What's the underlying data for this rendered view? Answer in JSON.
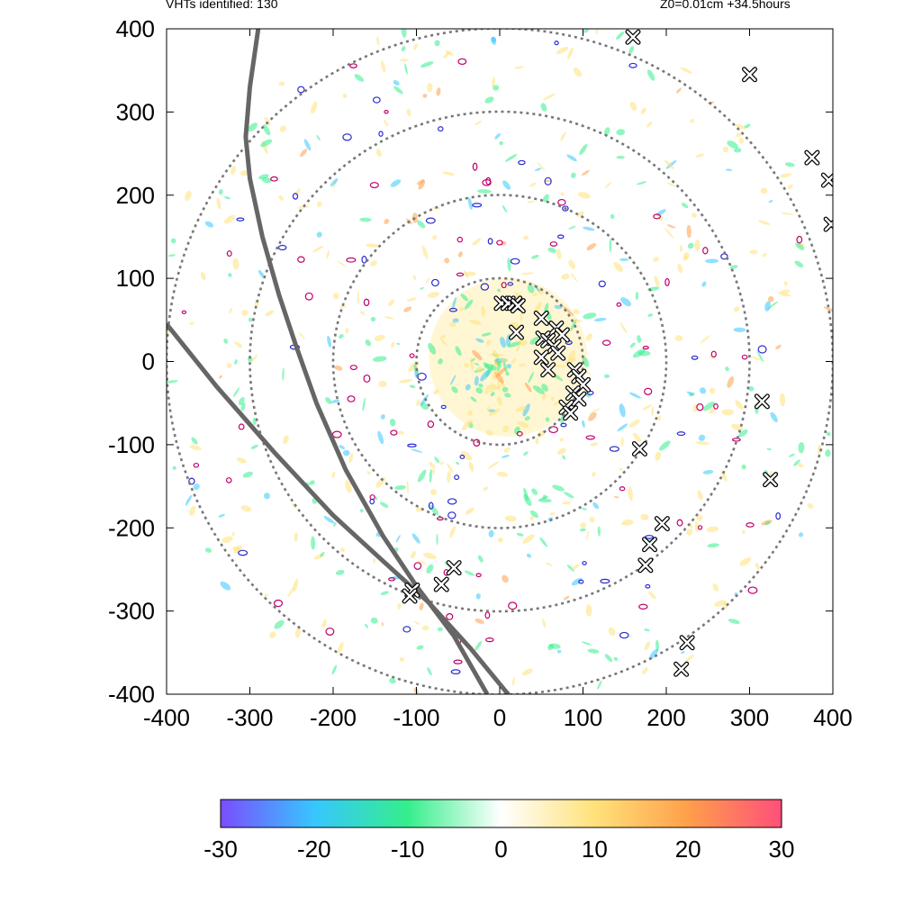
{
  "header": {
    "left_text": "VHTs identified: 130",
    "right_text": "Z0=0.01cm  +34.5hours"
  },
  "chart_data": {
    "type": "scatter",
    "title": "",
    "xlabel": "",
    "ylabel": "",
    "xlim": [
      -400,
      400
    ],
    "ylim": [
      -400,
      400
    ],
    "x_ticks": [
      -400,
      -300,
      -200,
      -100,
      0,
      100,
      200,
      300,
      400
    ],
    "y_ticks": [
      -400,
      -300,
      -200,
      -100,
      0,
      100,
      200,
      300,
      400
    ],
    "x_tick_labels": [
      "-400",
      "-300",
      "-200",
      "-100",
      "0",
      "100",
      "200",
      "300",
      "400"
    ],
    "y_tick_labels": [
      "-400",
      "-300",
      "-200",
      "-100",
      "0",
      "100",
      "200",
      "300",
      "400"
    ],
    "range_rings": [
      100,
      200,
      300,
      400
    ],
    "range_ring_color": "#777777",
    "track_color": "#666666",
    "tracks": [
      [
        [
          -290,
          400
        ],
        [
          -300,
          330
        ],
        [
          -305,
          270
        ],
        [
          -300,
          220
        ],
        [
          -285,
          150
        ],
        [
          -265,
          80
        ],
        [
          -245,
          20
        ],
        [
          -220,
          -50
        ],
        [
          -185,
          -130
        ],
        [
          -140,
          -210
        ],
        [
          -100,
          -270
        ],
        [
          -55,
          -330
        ],
        [
          -15,
          -400
        ]
      ],
      [
        [
          -400,
          45
        ],
        [
          -340,
          -30
        ],
        [
          -270,
          -110
        ],
        [
          -200,
          -185
        ],
        [
          -140,
          -240
        ],
        [
          -85,
          -290
        ],
        [
          -35,
          -345
        ],
        [
          10,
          -400
        ]
      ]
    ],
    "vht_markers": [
      [
        160,
        390
      ],
      [
        300,
        345
      ],
      [
        375,
        245
      ],
      [
        395,
        218
      ],
      [
        398,
        165
      ],
      [
        2,
        70
      ],
      [
        10,
        70
      ],
      [
        18,
        70
      ],
      [
        22,
        67
      ],
      [
        50,
        52
      ],
      [
        68,
        40
      ],
      [
        75,
        32
      ],
      [
        20,
        35
      ],
      [
        52,
        28
      ],
      [
        58,
        25
      ],
      [
        65,
        18
      ],
      [
        70,
        10
      ],
      [
        50,
        5
      ],
      [
        58,
        -10
      ],
      [
        90,
        -10
      ],
      [
        95,
        -18
      ],
      [
        100,
        -28
      ],
      [
        88,
        -38
      ],
      [
        95,
        -45
      ],
      [
        80,
        -55
      ],
      [
        85,
        -62
      ],
      [
        168,
        -105
      ],
      [
        315,
        -48
      ],
      [
        325,
        -142
      ],
      [
        195,
        -195
      ],
      [
        180,
        -220
      ],
      [
        175,
        -245
      ],
      [
        -55,
        -248
      ],
      [
        -70,
        -268
      ],
      [
        -105,
        -275
      ],
      [
        -108,
        -282
      ],
      [
        225,
        -338
      ],
      [
        218,
        -370
      ]
    ],
    "colorbar": {
      "min": -30,
      "max": 30,
      "ticks": [
        -30,
        -20,
        -10,
        0,
        10,
        20,
        30
      ],
      "tick_labels": [
        "-30",
        "-20",
        "-10",
        "0",
        "10",
        "20",
        "30"
      ],
      "colors": [
        "#7a4dff",
        "#37c6ff",
        "#35ee8c",
        "#ffffff",
        "#ffe27a",
        "#ff9f4a",
        "#ff4f7b"
      ]
    }
  }
}
